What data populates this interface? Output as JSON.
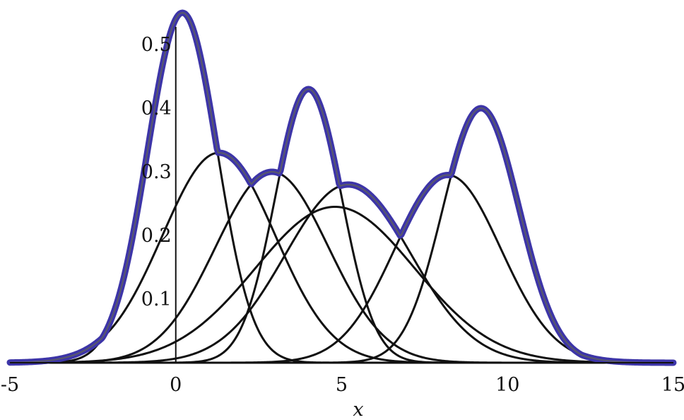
{
  "chart_data": {
    "type": "line",
    "xlabel": "x",
    "ylabel": "",
    "xlim": [
      -5,
      15
    ],
    "ylim": [
      0,
      0.57
    ],
    "x_ticks": [
      {
        "value": -5,
        "label": "-5"
      },
      {
        "value": 0,
        "label": "0"
      },
      {
        "value": 5,
        "label": "5"
      },
      {
        "value": 10,
        "label": "10"
      },
      {
        "value": 15,
        "label": "15"
      }
    ],
    "y_ticks": [
      {
        "value": 0.1,
        "label": "0.1"
      },
      {
        "value": 0.2,
        "label": "0.2"
      },
      {
        "value": 0.3,
        "label": "0.3"
      },
      {
        "value": 0.4,
        "label": "0.4"
      },
      {
        "value": 0.5,
        "label": "0.5"
      }
    ],
    "component_color": "#111111",
    "envelope_color": "#3d35a8",
    "components": [
      {
        "mean": 0.2,
        "sd": 1.05,
        "peak": 0.55
      },
      {
        "mean": 1.3,
        "sd": 1.7,
        "peak": 0.33
      },
      {
        "mean": 2.9,
        "sd": 1.7,
        "peak": 0.3
      },
      {
        "mean": 4.0,
        "sd": 1.0,
        "peak": 0.43
      },
      {
        "mean": 4.8,
        "sd": 2.4,
        "peak": 0.245
      },
      {
        "mean": 5.2,
        "sd": 1.9,
        "peak": 0.28
      },
      {
        "mean": 8.2,
        "sd": 1.6,
        "peak": 0.295
      },
      {
        "mean": 9.2,
        "sd": 1.15,
        "peak": 0.4
      }
    ],
    "envelope": "pointwise maximum of components"
  }
}
